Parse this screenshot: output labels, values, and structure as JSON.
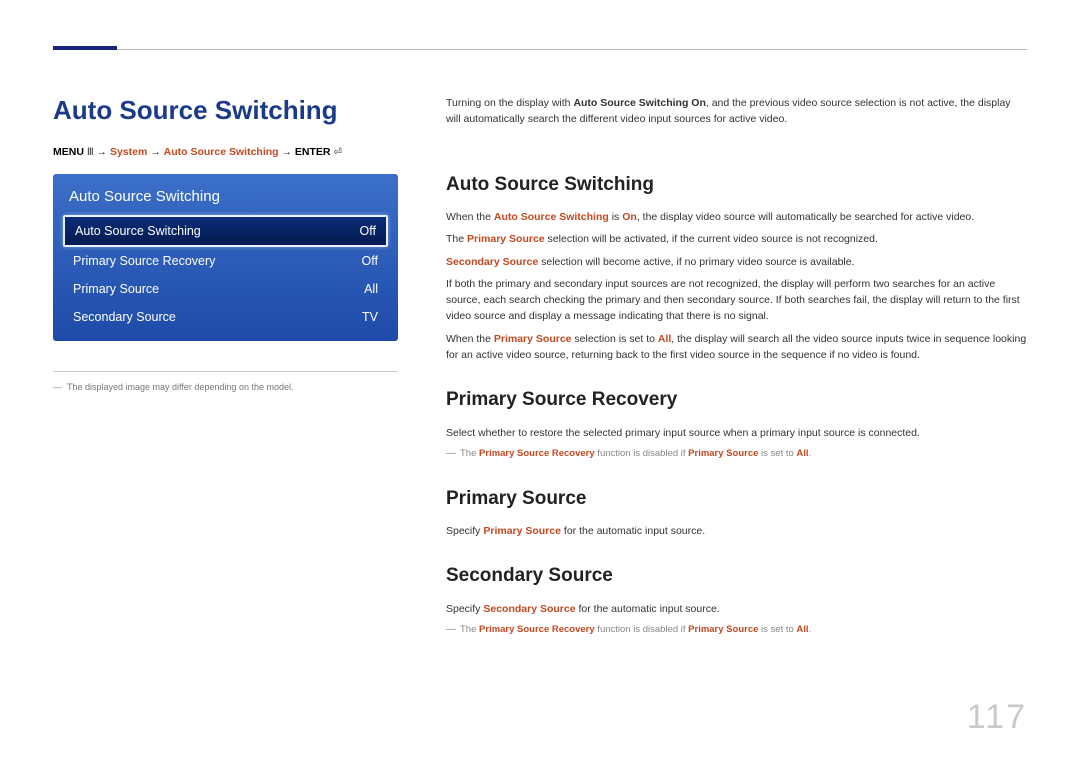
{
  "page": {
    "title": "Auto Source Switching",
    "number": "117"
  },
  "breadcrumb": {
    "menu": "MENU",
    "arrow": "→",
    "system": "System",
    "item": "Auto Source Switching",
    "enter": "ENTER"
  },
  "menu_panel": {
    "title": "Auto Source Switching",
    "rows": [
      {
        "label": "Auto Source Switching",
        "value": "Off",
        "selected": true
      },
      {
        "label": "Primary Source Recovery",
        "value": "Off",
        "selected": false
      },
      {
        "label": "Primary Source",
        "value": "All",
        "selected": false
      },
      {
        "label": "Secondary Source",
        "value": "TV",
        "selected": false
      }
    ]
  },
  "left_note": "The displayed image may differ depending on the model.",
  "right": {
    "intro_a": "Turning on the display with ",
    "intro_b": "Auto Source Switching On",
    "intro_c": ", and the previous video source selection is not active, the display will automatically search the different video input sources for active video.",
    "h1": "Auto Source Switching",
    "p1a": "When the ",
    "p1b": "Auto Source Switching",
    "p1c": " is ",
    "p1d": "On",
    "p1e": ", the display video source will automatically be searched for active video.",
    "p2a": "The ",
    "p2b": "Primary Source",
    "p2c": " selection will be activated, if the current video source is not recognized.",
    "p3a": "Secondary Source",
    "p3b": " selection will become active, if no primary video source is available.",
    "p4": "If both the primary and secondary input sources are not recognized, the display will perform two searches for an active source, each search checking the primary and then secondary source. If both searches fail, the display will return to the first video source and display a message indicating that there is no signal.",
    "p5a": "When the ",
    "p5b": "Primary Source",
    "p5c": " selection is set to ",
    "p5d": "All",
    "p5e": ", the display will search all the video source inputs twice in sequence looking for an active video source, returning back to the first video source in the sequence if no video is found.",
    "h2": "Primary Source Recovery",
    "p6": "Select whether to restore the selected primary input source when a primary input source is connected.",
    "n1a": "The ",
    "n1b": "Primary Source Recovery",
    "n1c": " function is disabled if ",
    "n1d": "Primary Source",
    "n1e": " is set to ",
    "n1f": "All",
    "n1g": ".",
    "h3": "Primary Source",
    "p7a": "Specify ",
    "p7b": "Primary Source",
    "p7c": " for the automatic input source.",
    "h4": "Secondary Source",
    "p8a": "Specify ",
    "p8b": "Secondary Source",
    "p8c": " for the automatic input source.",
    "n2a": "The ",
    "n2b": "Primary Source Recovery",
    "n2c": " function is disabled if ",
    "n2d": "Primary Source",
    "n2e": " is set to ",
    "n2f": "All",
    "n2g": "."
  },
  "colors": {
    "title_color": "#1a3a8a",
    "accent_color": "#c44820",
    "panel_grad_top": "#3b6fc8",
    "panel_grad_bottom": "#1e4ba8",
    "selected_grad_top": "#0a2c78",
    "selected_grad_bottom": "#051b50",
    "page_number_color": "#c9c9c9"
  }
}
